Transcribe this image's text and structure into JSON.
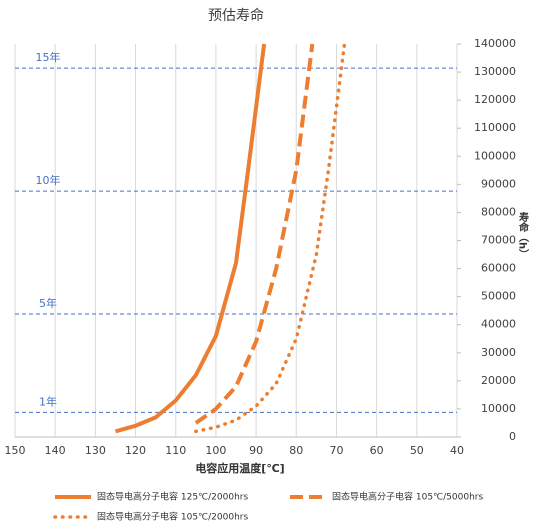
{
  "chart_data": {
    "type": "line",
    "title": "预估寿命",
    "x_label": "电容应用温度[℃]",
    "y_label": "寿命（h）",
    "xlim": [
      150,
      40
    ],
    "xticks": [
      150,
      140,
      130,
      120,
      110,
      100,
      90,
      80,
      70,
      60,
      50,
      40
    ],
    "ylim": [
      0,
      140000
    ],
    "yticks": [
      0,
      10000,
      20000,
      30000,
      40000,
      50000,
      60000,
      70000,
      80000,
      90000,
      100000,
      110000,
      120000,
      130000,
      140000
    ],
    "grid": "x",
    "reference_lines": [
      {
        "value": 8760,
        "label": "1年",
        "color": "#4472c4"
      },
      {
        "value": 43800,
        "label": "5年",
        "color": "#4472c4"
      },
      {
        "value": 87600,
        "label": "10年",
        "color": "#4472c4"
      },
      {
        "value": 131400,
        "label": "15年",
        "color": "#4472c4"
      }
    ],
    "series": [
      {
        "name": "固态导电高分子电容 125℃/2000hrs",
        "color": "#ed7d31",
        "style": "solid",
        "x": [
          125,
          120,
          115,
          110,
          105,
          100,
          95,
          92,
          88
        ],
        "values": [
          2000,
          4000,
          7000,
          13000,
          22000,
          36000,
          62000,
          95000,
          140000
        ]
      },
      {
        "name": "固态导电高分子电容 105℃/5000hrs",
        "color": "#ed7d31",
        "style": "dashed",
        "x": [
          105,
          100,
          95,
          90,
          85,
          80,
          76
        ],
        "values": [
          5000,
          10000,
          18000,
          34000,
          60000,
          95000,
          140000
        ]
      },
      {
        "name": "固态导电高分子电容 105℃/2000hrs",
        "color": "#ed7d31",
        "style": "dotted",
        "x": [
          105,
          100,
          95,
          90,
          85,
          80,
          75,
          72,
          68
        ],
        "values": [
          2000,
          3500,
          6000,
          11000,
          19000,
          35000,
          65000,
          95000,
          140000
        ]
      }
    ]
  }
}
